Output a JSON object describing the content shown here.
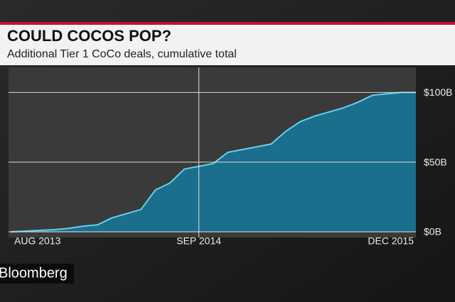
{
  "chart_data": {
    "type": "area",
    "title": "COULD COCOS POP?",
    "subtitle": "Additional Tier 1 CoCo deals, cumulative total",
    "x": [
      "2013-08",
      "2013-09",
      "2013-10",
      "2013-11",
      "2013-12",
      "2014-01",
      "2014-02",
      "2014-03",
      "2014-04",
      "2014-05",
      "2014-06",
      "2014-07",
      "2014-08",
      "2014-09",
      "2014-10",
      "2014-11",
      "2014-12",
      "2015-01",
      "2015-02",
      "2015-03",
      "2015-04",
      "2015-05",
      "2015-06",
      "2015-07",
      "2015-08",
      "2015-09",
      "2015-10",
      "2015-11",
      "2015-12"
    ],
    "values": [
      0,
      0.5,
      1,
      1.5,
      2.5,
      4,
      5,
      10,
      13,
      16,
      30,
      35,
      45,
      47,
      49,
      57,
      59,
      61,
      63,
      72,
      79,
      83,
      86,
      89,
      93,
      98,
      99,
      100,
      100
    ],
    "color": "#1b6e8c",
    "line_color": "#62d2ee",
    "xlim": [
      "2013-08",
      "2015-12"
    ],
    "xticks": [
      {
        "value": "2013-08",
        "label": "AUG 2013"
      },
      {
        "value": "2014-09",
        "label": "SEP 2014"
      },
      {
        "value": "2015-12",
        "label": "DEC 2015"
      }
    ],
    "ylim": [
      0,
      117
    ],
    "yticks": [
      {
        "value": 0,
        "label": "$0B"
      },
      {
        "value": 50,
        "label": "$50B"
      },
      {
        "value": 100,
        "label": "$100B"
      }
    ],
    "grid": true
  },
  "brand": "Bloomberg"
}
